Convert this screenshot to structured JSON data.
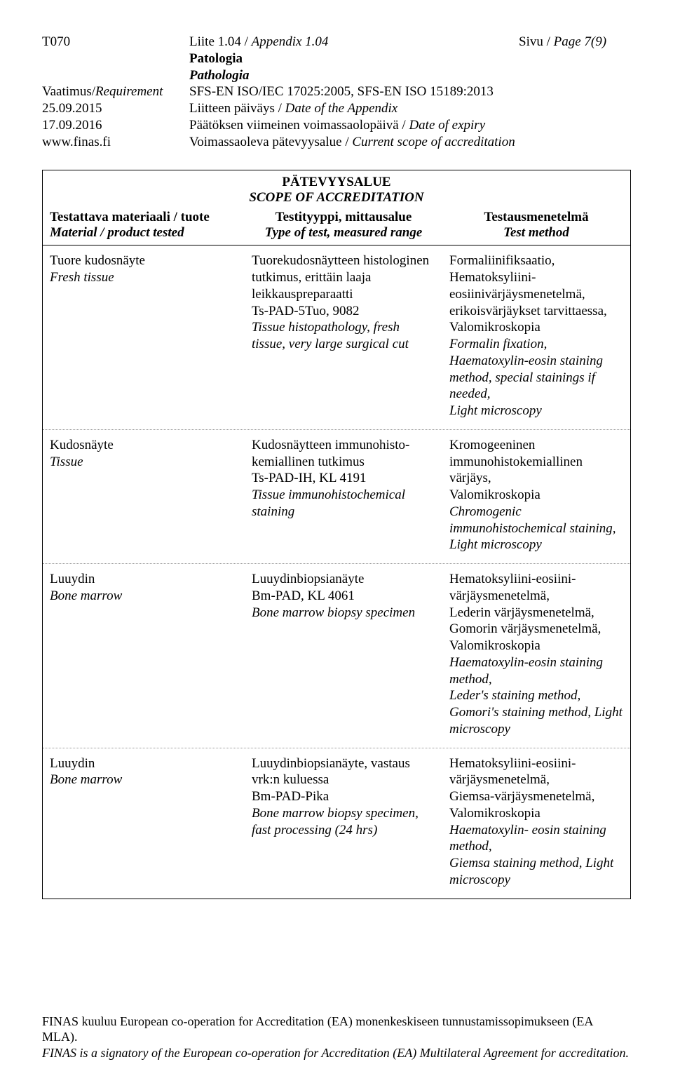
{
  "header": {
    "code": "T070",
    "liite": "Liite 1.04 / ",
    "appendix": "Appendix 1.04",
    "sivu": "Sivu / ",
    "page": "Page 7(9)",
    "patologia": "Patologia",
    "pathologia": "Pathologia",
    "req_label": "Vaatimus/",
    "req_label_it": "Requirement",
    "req_value": "SFS-EN ISO/IEC 17025:2005, SFS-EN ISO 15189:2013",
    "date1": "25.09.2015",
    "date1_text": "Liitteen päiväys / ",
    "date1_it": "Date of the Appendix",
    "date2": "17.09.2016",
    "date2_text": "Päätöksen viimeinen voimassaolopäivä / ",
    "date2_it": "Date of expiry",
    "site": "www.finas.fi",
    "scope_text": "Voimassaoleva pätevyysalue / ",
    "scope_it": "Current scope of accreditation"
  },
  "table": {
    "title": "PÄTEVYYSALUE",
    "subtitle": "SCOPE OF ACCREDITATION",
    "heads": {
      "c1a": "Testattava materiaali / tuote",
      "c1b": "Material / product tested",
      "c2a": "Testityyppi, mittausalue",
      "c2b": "Type of test, measured range",
      "c3a": "Testausmenetelmä",
      "c3b": "Test method"
    },
    "rows": [
      {
        "c1": "Tuore kudosnäyte",
        "c1i": "Fresh tissue",
        "c2": "Tuorekudosnäytteen histologinen tutkimus, erittäin laaja leikkauspreparaatti\nTs-PAD-5Tuo, 9082",
        "c2i": "Tissue histopathology, fresh tissue, very large surgical cut",
        "c3": "Formaliinifiksaatio, Hematoksyliini-eosiinivärjäysmenetelmä, erikoisvärjäykset tarvittaessa, Valomikroskopia",
        "c3i": "Formalin fixation, Haematoxylin-eosin staining method, special stainings if needed,\nLight microscopy"
      },
      {
        "c1": "Kudosnäyte",
        "c1i": "Tissue",
        "c2": "Kudosnäytteen immunohisto-kemiallinen tutkimus\nTs-PAD-IH, KL 4191",
        "c2i": "Tissue immunohistochemical staining",
        "c3": "Kromogeeninen immunohistokemiallinen värjäys,\nValomikroskopia",
        "c3i": "Chromogenic immunohistochemical staining, Light microscopy"
      },
      {
        "c1": "Luuydin",
        "c1i": "Bone marrow",
        "c2": "Luuydinbiopsianäyte\nBm-PAD, KL 4061",
        "c2i": "Bone marrow biopsy specimen",
        "c3": "Hematoksyliini-eosiini-värjäysmenetelmä,\nLederin värjäysmenetelmä, Gomorin värjäysmenetelmä, Valomikroskopia",
        "c3i": "Haematoxylin-eosin staining method,\nLeder's staining method, Gomori's staining method, Light microscopy"
      },
      {
        "c1": "Luuydin",
        "c1i": "Bone marrow",
        "c2": "Luuydinbiopsianäyte, vastaus vrk:n kuluessa\nBm-PAD-Pika",
        "c2i": "Bone marrow biopsy specimen, fast processing (24 hrs)",
        "c3": "Hematoksyliini-eosiini-värjäysmenetelmä,\nGiemsa-värjäysmenetelmä, Valomikroskopia",
        "c3i": "Haematoxylin- eosin staining method,\nGiemsa staining method, Light microscopy"
      }
    ]
  },
  "footer": {
    "line1": "FINAS kuuluu European co-operation for Accreditation (EA) monenkeskiseen tunnustamissopimukseen (EA MLA).",
    "line2": "FINAS is a signatory of the European co-operation for Accreditation (EA) Multilateral Agreement for accreditation."
  },
  "colors": {
    "text": "#000000",
    "bg": "#ffffff",
    "dotted": "#999999"
  }
}
